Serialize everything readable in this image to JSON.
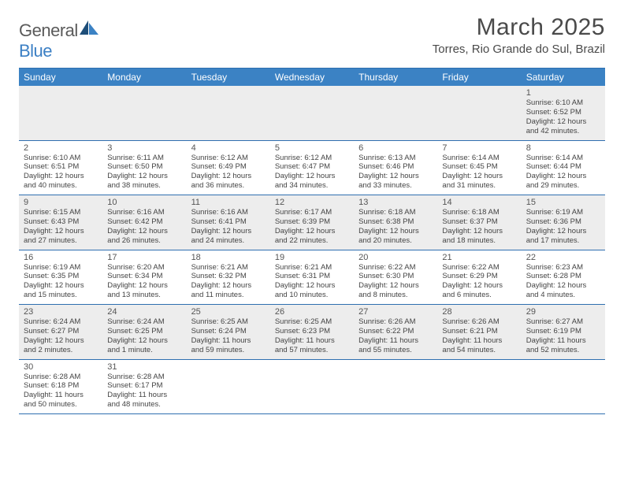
{
  "brand": {
    "part1": "General",
    "part2": "Blue"
  },
  "title": "March 2025",
  "location": "Torres, Rio Grande do Sul, Brazil",
  "colors": {
    "header_bg": "#3b82c4",
    "border": "#2f6fb0",
    "shaded_row": "#ededed",
    "text": "#444444"
  },
  "day_names": [
    "Sunday",
    "Monday",
    "Tuesday",
    "Wednesday",
    "Thursday",
    "Friday",
    "Saturday"
  ],
  "weeks": [
    {
      "shaded": true,
      "days": [
        null,
        null,
        null,
        null,
        null,
        null,
        {
          "n": "1",
          "sr": "6:10 AM",
          "ss": "6:52 PM",
          "dl": "12 hours and 42 minutes."
        }
      ]
    },
    {
      "shaded": false,
      "days": [
        {
          "n": "2",
          "sr": "6:10 AM",
          "ss": "6:51 PM",
          "dl": "12 hours and 40 minutes."
        },
        {
          "n": "3",
          "sr": "6:11 AM",
          "ss": "6:50 PM",
          "dl": "12 hours and 38 minutes."
        },
        {
          "n": "4",
          "sr": "6:12 AM",
          "ss": "6:49 PM",
          "dl": "12 hours and 36 minutes."
        },
        {
          "n": "5",
          "sr": "6:12 AM",
          "ss": "6:47 PM",
          "dl": "12 hours and 34 minutes."
        },
        {
          "n": "6",
          "sr": "6:13 AM",
          "ss": "6:46 PM",
          "dl": "12 hours and 33 minutes."
        },
        {
          "n": "7",
          "sr": "6:14 AM",
          "ss": "6:45 PM",
          "dl": "12 hours and 31 minutes."
        },
        {
          "n": "8",
          "sr": "6:14 AM",
          "ss": "6:44 PM",
          "dl": "12 hours and 29 minutes."
        }
      ]
    },
    {
      "shaded": true,
      "days": [
        {
          "n": "9",
          "sr": "6:15 AM",
          "ss": "6:43 PM",
          "dl": "12 hours and 27 minutes."
        },
        {
          "n": "10",
          "sr": "6:16 AM",
          "ss": "6:42 PM",
          "dl": "12 hours and 26 minutes."
        },
        {
          "n": "11",
          "sr": "6:16 AM",
          "ss": "6:41 PM",
          "dl": "12 hours and 24 minutes."
        },
        {
          "n": "12",
          "sr": "6:17 AM",
          "ss": "6:39 PM",
          "dl": "12 hours and 22 minutes."
        },
        {
          "n": "13",
          "sr": "6:18 AM",
          "ss": "6:38 PM",
          "dl": "12 hours and 20 minutes."
        },
        {
          "n": "14",
          "sr": "6:18 AM",
          "ss": "6:37 PM",
          "dl": "12 hours and 18 minutes."
        },
        {
          "n": "15",
          "sr": "6:19 AM",
          "ss": "6:36 PM",
          "dl": "12 hours and 17 minutes."
        }
      ]
    },
    {
      "shaded": false,
      "days": [
        {
          "n": "16",
          "sr": "6:19 AM",
          "ss": "6:35 PM",
          "dl": "12 hours and 15 minutes."
        },
        {
          "n": "17",
          "sr": "6:20 AM",
          "ss": "6:34 PM",
          "dl": "12 hours and 13 minutes."
        },
        {
          "n": "18",
          "sr": "6:21 AM",
          "ss": "6:32 PM",
          "dl": "12 hours and 11 minutes."
        },
        {
          "n": "19",
          "sr": "6:21 AM",
          "ss": "6:31 PM",
          "dl": "12 hours and 10 minutes."
        },
        {
          "n": "20",
          "sr": "6:22 AM",
          "ss": "6:30 PM",
          "dl": "12 hours and 8 minutes."
        },
        {
          "n": "21",
          "sr": "6:22 AM",
          "ss": "6:29 PM",
          "dl": "12 hours and 6 minutes."
        },
        {
          "n": "22",
          "sr": "6:23 AM",
          "ss": "6:28 PM",
          "dl": "12 hours and 4 minutes."
        }
      ]
    },
    {
      "shaded": true,
      "days": [
        {
          "n": "23",
          "sr": "6:24 AM",
          "ss": "6:27 PM",
          "dl": "12 hours and 2 minutes."
        },
        {
          "n": "24",
          "sr": "6:24 AM",
          "ss": "6:25 PM",
          "dl": "12 hours and 1 minute."
        },
        {
          "n": "25",
          "sr": "6:25 AM",
          "ss": "6:24 PM",
          "dl": "11 hours and 59 minutes."
        },
        {
          "n": "26",
          "sr": "6:25 AM",
          "ss": "6:23 PM",
          "dl": "11 hours and 57 minutes."
        },
        {
          "n": "27",
          "sr": "6:26 AM",
          "ss": "6:22 PM",
          "dl": "11 hours and 55 minutes."
        },
        {
          "n": "28",
          "sr": "6:26 AM",
          "ss": "6:21 PM",
          "dl": "11 hours and 54 minutes."
        },
        {
          "n": "29",
          "sr": "6:27 AM",
          "ss": "6:19 PM",
          "dl": "11 hours and 52 minutes."
        }
      ]
    },
    {
      "shaded": false,
      "days": [
        {
          "n": "30",
          "sr": "6:28 AM",
          "ss": "6:18 PM",
          "dl": "11 hours and 50 minutes."
        },
        {
          "n": "31",
          "sr": "6:28 AM",
          "ss": "6:17 PM",
          "dl": "11 hours and 48 minutes."
        },
        null,
        null,
        null,
        null,
        null
      ]
    }
  ],
  "labels": {
    "sunrise": "Sunrise: ",
    "sunset": "Sunset: ",
    "daylight": "Daylight: "
  }
}
